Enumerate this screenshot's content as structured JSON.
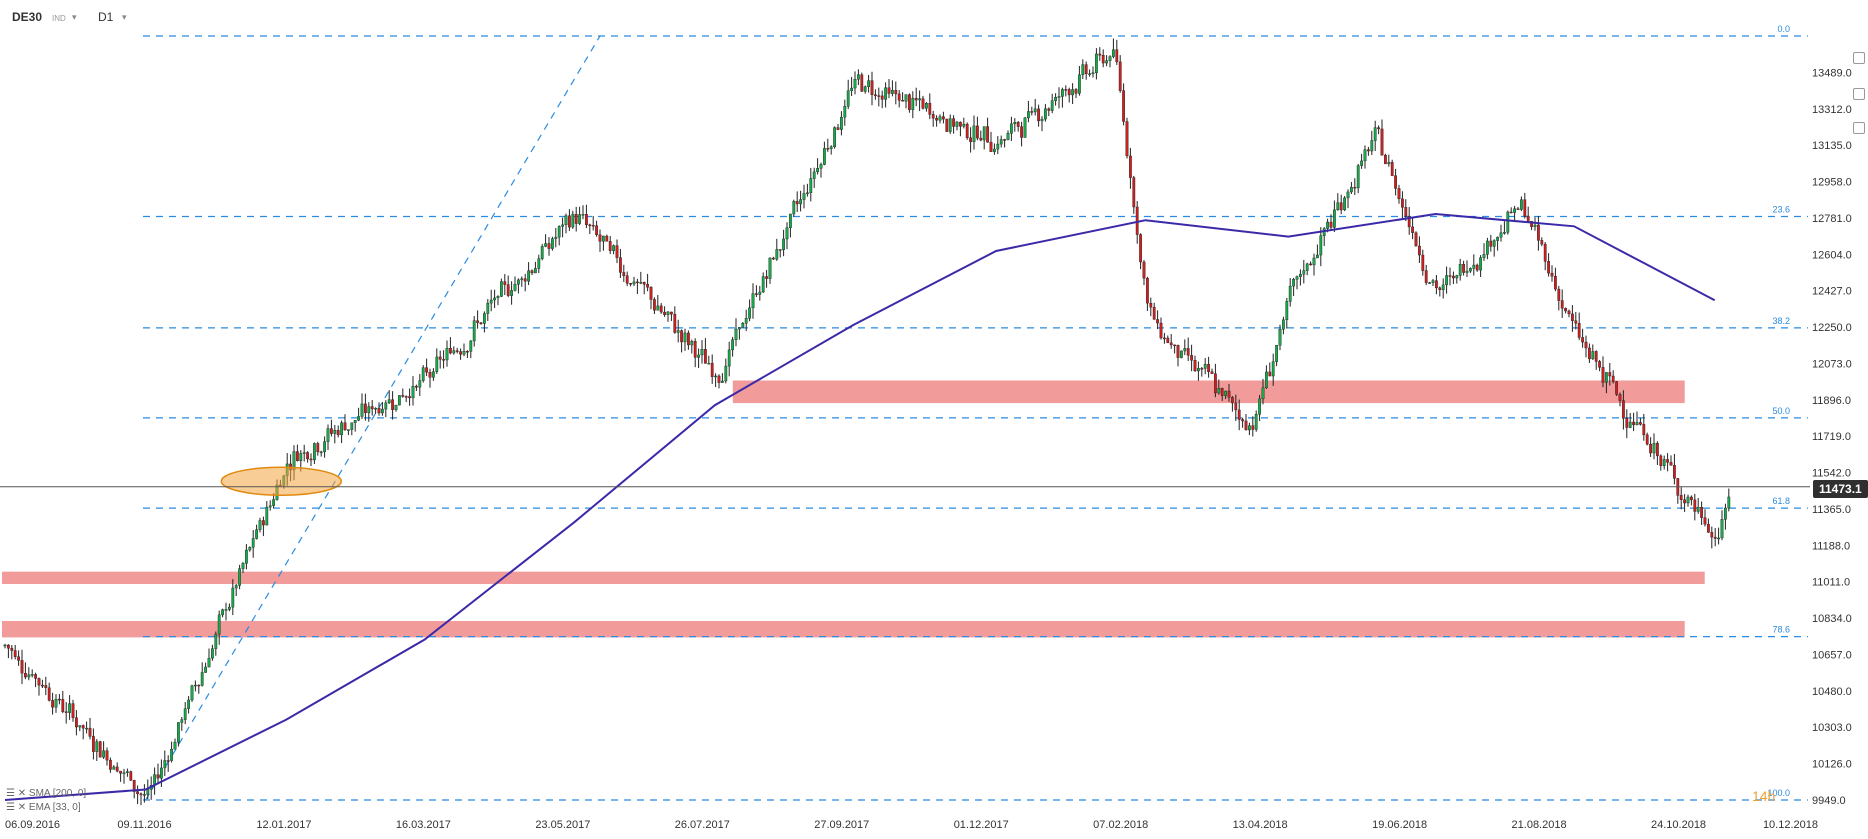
{
  "header": {
    "symbol": "DE30",
    "subtype": "IND",
    "timeframe": "D1"
  },
  "legend": {
    "sma": "SMA [200, 0]",
    "ema": "EMA [33, 0]"
  },
  "sessions_label": "14h",
  "last_price_tag": "11473.1",
  "colors": {
    "up": "#17a84a",
    "down": "#cc2020",
    "sma": "#3b2aa8",
    "fib": "#2a8be0",
    "zone": "#ef8a8a",
    "ellipse_fill": "#f4a640"
  },
  "chart_data": {
    "type": "candlestick",
    "ylim": [
      9949.0,
      13666.0
    ],
    "y_ticks": [
      "13489.0",
      "13312.0",
      "13135.0",
      "12958.0",
      "12781.0",
      "12604.0",
      "12427.0",
      "12250.0",
      "12073.0",
      "11896.0",
      "11719.0",
      "11542.0",
      "11365.0",
      "11188.0",
      "11011.0",
      "10834.0",
      "10657.0",
      "10480.0",
      "10303.0",
      "10126.0",
      "9949.0"
    ],
    "x_ticks": [
      "06.09.2016",
      "09.11.2016",
      "12.01.2017",
      "16.03.2017",
      "23.05.2017",
      "26.07.2017",
      "27.09.2017",
      "01.12.2017",
      "07.02.2018",
      "13.04.2018",
      "19.06.2018",
      "21.08.2018",
      "24.10.2018",
      "10.12.2018"
    ],
    "fib_levels": [
      {
        "label": "0.0",
        "price": 13666
      },
      {
        "label": "23.6",
        "price": 12788
      },
      {
        "label": "38.2",
        "price": 12246
      },
      {
        "label": "50.0",
        "price": 11808
      },
      {
        "label": "61.8",
        "price": 11369
      },
      {
        "label": "78.6",
        "price": 10744
      },
      {
        "label": "100.0",
        "price": 9949
      }
    ],
    "last_price": 11473.1,
    "key_points": [
      {
        "date": "06.09.2016",
        "price": 10700
      },
      {
        "date": "09.11.2016",
        "price": 9949
      },
      {
        "date": "12.01.2017",
        "price": 11620
      },
      {
        "date": "16.03.2017",
        "price": 12000
      },
      {
        "date": "23.05.2017",
        "price": 12800
      },
      {
        "date": "26.07.2017",
        "price": 12000
      },
      {
        "date": "27.09.2017",
        "price": 13450
      },
      {
        "date": "01.12.2017",
        "price": 13150
      },
      {
        "date": "23.01.2018",
        "price": 13600
      },
      {
        "date": "07.02.2018",
        "price": 12300
      },
      {
        "date": "26.03.2018",
        "price": 11760
      },
      {
        "date": "13.04.2018",
        "price": 12400
      },
      {
        "date": "22.05.2018",
        "price": 13180
      },
      {
        "date": "19.06.2018",
        "price": 12400
      },
      {
        "date": "27.07.2018",
        "price": 12850
      },
      {
        "date": "21.08.2018",
        "price": 12200
      },
      {
        "date": "24.10.2018",
        "price": 11200
      },
      {
        "date": "31.10.2018",
        "price": 11473
      }
    ],
    "sma_200": [
      {
        "date": "06.09.2016",
        "price": 9949
      },
      {
        "date": "09.11.2016",
        "price": 10000
      },
      {
        "date": "12.01.2017",
        "price": 10340
      },
      {
        "date": "16.03.2017",
        "price": 10730
      },
      {
        "date": "23.05.2017",
        "price": 11300
      },
      {
        "date": "26.07.2017",
        "price": 11870
      },
      {
        "date": "27.09.2017",
        "price": 12260
      },
      {
        "date": "01.12.2017",
        "price": 12620
      },
      {
        "date": "07.02.2018",
        "price": 12770
      },
      {
        "date": "13.04.2018",
        "price": 12690
      },
      {
        "date": "19.06.2018",
        "price": 12800
      },
      {
        "date": "21.08.2018",
        "price": 12740
      },
      {
        "date": "24.10.2018",
        "price": 12380
      }
    ],
    "zones": [
      {
        "name": "resistance-zone-upper",
        "top": 11990,
        "bottom": 11880
      },
      {
        "name": "support-zone-middle",
        "top": 11060,
        "bottom": 11000
      },
      {
        "name": "support-zone-lower",
        "top": 10820,
        "bottom": 10740
      }
    ]
  }
}
